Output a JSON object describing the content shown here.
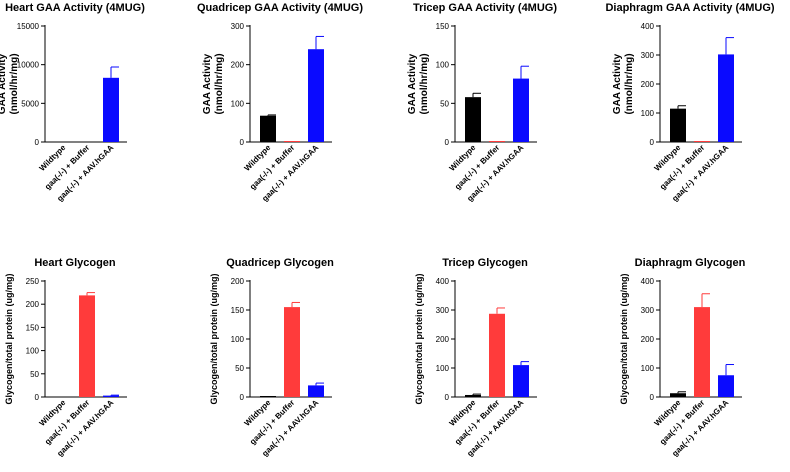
{
  "colors": {
    "Wildtype": "#000000",
    "gaa(-/-) + Buffer": "#ff3b3b",
    "gaa(-/-) + AAV.hGAA": "#0a0aff"
  },
  "chart_data": [
    {
      "type": "bar",
      "title": "Heart GAA Activity (4MUG)",
      "ylabel": [
        "GAA Activity",
        "(nmol/hr/mg)"
      ],
      "categories": [
        "Wildtype",
        "gaa(-/-) + Buffer",
        "gaa(-/-) + AAV.hGAA"
      ],
      "values": [
        0,
        0,
        8300
      ],
      "errors": [
        0,
        0,
        1400
      ],
      "ylim": [
        0,
        15000
      ],
      "yticks": [
        0,
        5000,
        10000,
        15000
      ],
      "ytick_labels": [
        "0",
        "5000",
        "10000",
        "15000"
      ]
    },
    {
      "type": "bar",
      "title": "Quadricep GAA Activity (4MUG)",
      "ylabel": [
        "GAA Activity",
        "(nmol/hr/mg)"
      ],
      "categories": [
        "Wildtype",
        "gaa(-/-) + Buffer",
        "gaa(-/-) + AAV.hGAA"
      ],
      "values": [
        68,
        1,
        240
      ],
      "errors": [
        2,
        0,
        33
      ],
      "ylim": [
        0,
        300
      ],
      "yticks": [
        0,
        100,
        200,
        300
      ],
      "ytick_labels": [
        "0",
        "100",
        "200",
        "300"
      ]
    },
    {
      "type": "bar",
      "title": "Tricep GAA Activity (4MUG)",
      "ylabel": [
        "GAA Activity",
        "(nmol/hr/mg)"
      ],
      "categories": [
        "Wildtype",
        "gaa(-/-) + Buffer",
        "gaa(-/-) + AAV.hGAA"
      ],
      "values": [
        58,
        1,
        82
      ],
      "errors": [
        5,
        0,
        16
      ],
      "ylim": [
        0,
        150
      ],
      "yticks": [
        0,
        50,
        100,
        150
      ],
      "ytick_labels": [
        "0",
        "50",
        "100",
        "150"
      ]
    },
    {
      "type": "bar",
      "title": "Diaphragm GAA Activity (4MUG)",
      "ylabel": [
        "GAA Activity",
        "(nmol/hr/mg)"
      ],
      "categories": [
        "Wildtype",
        "gaa(-/-) + Buffer",
        "gaa(-/-) + AAV.hGAA"
      ],
      "values": [
        115,
        2,
        302
      ],
      "errors": [
        10,
        0,
        58
      ],
      "ylim": [
        0,
        400
      ],
      "yticks": [
        0,
        100,
        200,
        300,
        400
      ],
      "ytick_labels": [
        "0",
        "100",
        "200",
        "300",
        "400"
      ]
    },
    {
      "type": "bar",
      "title": "Heart Glycogen",
      "ylabel": [
        "Glycogen/total protein (ug/mg)"
      ],
      "categories": [
        "Wildtype",
        "gaa(-/-) + Buffer",
        "gaa(-/-) + AAV.hGAA"
      ],
      "values": [
        0,
        219,
        3
      ],
      "errors": [
        0,
        6,
        1
      ],
      "ylim": [
        0,
        250
      ],
      "yticks": [
        0,
        50,
        100,
        150,
        200,
        250
      ],
      "ytick_labels": [
        "0",
        "50",
        "100",
        "150",
        "200",
        "250"
      ]
    },
    {
      "type": "bar",
      "title": "Quadricep Glycogen",
      "ylabel": [
        "Glycogen/total protein (ug/mg)"
      ],
      "categories": [
        "Wildtype",
        "gaa(-/-) + Buffer",
        "gaa(-/-) + AAV.hGAA"
      ],
      "values": [
        1,
        155,
        20
      ],
      "errors": [
        0,
        8,
        4
      ],
      "ylim": [
        0,
        200
      ],
      "yticks": [
        0,
        50,
        100,
        150,
        200
      ],
      "ytick_labels": [
        "0",
        "50",
        "100",
        "150",
        "200"
      ]
    },
    {
      "type": "bar",
      "title": "Tricep Glycogen",
      "ylabel": [
        "Glycogen/total protein (ug/mg)"
      ],
      "categories": [
        "Wildtype",
        "gaa(-/-) + Buffer",
        "gaa(-/-) + AAV.hGAA"
      ],
      "values": [
        7,
        287,
        110
      ],
      "errors": [
        3,
        20,
        12
      ],
      "ylim": [
        0,
        400
      ],
      "yticks": [
        0,
        100,
        200,
        300,
        400
      ],
      "ytick_labels": [
        "0",
        "100",
        "200",
        "300",
        "400"
      ]
    },
    {
      "type": "bar",
      "title": "Diaphragm Glycogen",
      "ylabel": [
        "Glycogen/total protein (ug/mg)"
      ],
      "categories": [
        "Wildtype",
        "gaa(-/-) + Buffer",
        "gaa(-/-) + AAV.hGAA"
      ],
      "values": [
        13,
        310,
        75
      ],
      "errors": [
        5,
        46,
        37
      ],
      "ylim": [
        0,
        400
      ],
      "yticks": [
        0,
        100,
        200,
        300,
        400
      ],
      "ytick_labels": [
        "0",
        "100",
        "200",
        "300",
        "400"
      ]
    }
  ]
}
